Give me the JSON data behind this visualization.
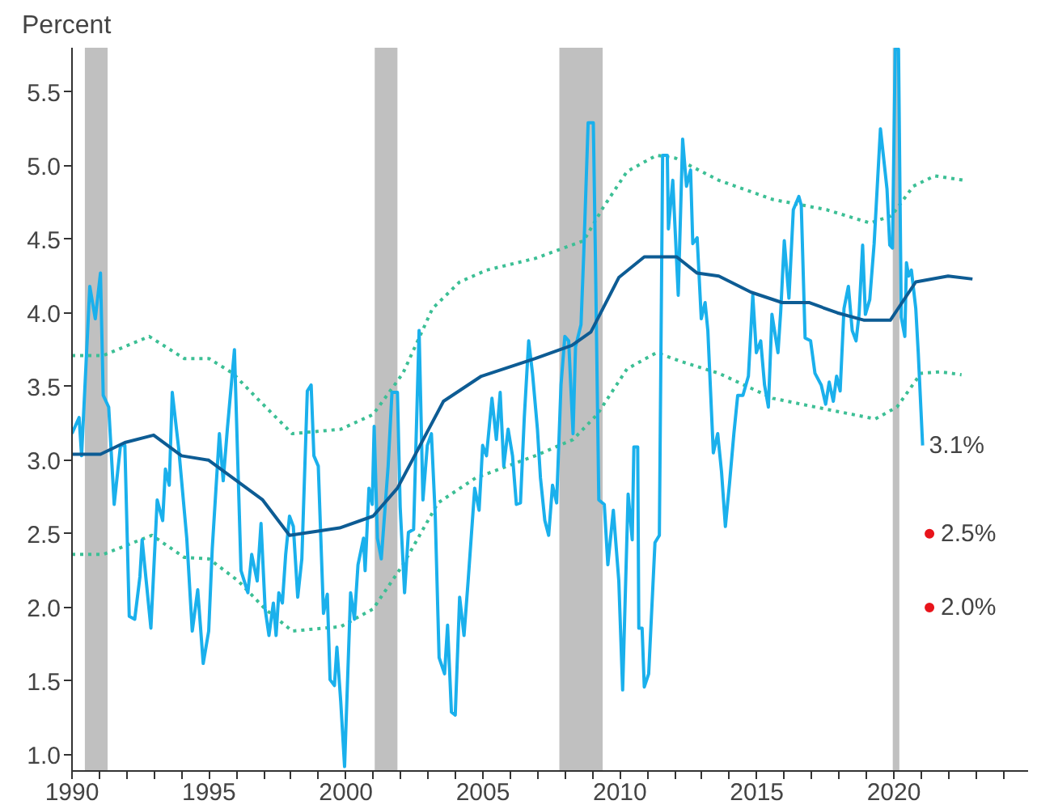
{
  "chart_data": {
    "type": "line",
    "ylabel": "Percent",
    "xlim": [
      1990,
      2024.9
    ],
    "ylim": [
      0.89,
      5.8
    ],
    "xticks": [
      1990,
      {
        "value": 1991,
        "label": null
      },
      {
        "value": 1992,
        "label": null
      },
      {
        "value": 1993,
        "label": null
      },
      {
        "value": 1994,
        "label": null
      },
      1995,
      {
        "value": 1996,
        "label": null
      },
      {
        "value": 1997,
        "label": null
      },
      {
        "value": 1998,
        "label": null
      },
      {
        "value": 1999,
        "label": null
      },
      2000,
      {
        "value": 2001,
        "label": null
      },
      {
        "value": 2002,
        "label": null
      },
      {
        "value": 2003,
        "label": null
      },
      {
        "value": 2004,
        "label": null
      },
      2005,
      {
        "value": 2006,
        "label": null
      },
      {
        "value": 2007,
        "label": null
      },
      {
        "value": 2008,
        "label": null
      },
      {
        "value": 2009,
        "label": null
      },
      2010,
      {
        "value": 2011,
        "label": null
      },
      {
        "value": 2012,
        "label": null
      },
      {
        "value": 2013,
        "label": null
      },
      {
        "value": 2014,
        "label": null
      },
      2015,
      {
        "value": 2016,
        "label": null
      },
      {
        "value": 2017,
        "label": null
      },
      {
        "value": 2018,
        "label": null
      },
      {
        "value": 2019,
        "label": null
      },
      2020,
      {
        "value": 2021,
        "label": null
      },
      {
        "value": 2022,
        "label": null
      },
      {
        "value": 2023,
        "label": null
      },
      {
        "value": 2024,
        "label": null
      }
    ],
    "yticks": [
      {
        "value": 1,
        "label": "1.0"
      },
      1.5,
      {
        "value": 2,
        "label": "2.0"
      },
      2.5,
      {
        "value": 3,
        "label": "3.0"
      },
      3.5,
      {
        "value": 4,
        "label": "4.0"
      },
      4.5,
      {
        "value": 5,
        "label": "5.0"
      },
      5.5
    ],
    "grid": false,
    "bands": [
      {
        "axis": "x",
        "from": 1990.47,
        "to": 1991.3,
        "color": "#c0c0c0"
      },
      {
        "axis": "x",
        "from": 2001.05,
        "to": 2001.88,
        "color": "#c0c0c0"
      },
      {
        "axis": "x",
        "from": 2007.79,
        "to": 2009.37,
        "color": "#c0c0c0"
      },
      {
        "axis": "x",
        "from": 2019.96,
        "to": 2020.2,
        "color": "#c0c0c0"
      }
    ],
    "annotations": [
      {
        "text": "3.1%",
        "x": 2021.05,
        "y": 3.1
      }
    ],
    "series": [
      {
        "line_style": "dotted",
        "color": "#3cbf95",
        "x": [
          1990.0,
          1991.14,
          1992.82,
          1994.1,
          1995.0,
          1995.87,
          1996.86,
          1998.04,
          1999.81,
          2000.99,
          2002.08,
          2003.16,
          2004.15,
          2005.13,
          2006.91,
          2008.68,
          2009.37,
          2010.26,
          2011.34,
          2012.03,
          2013.61,
          2015.58,
          2017.55,
          2019.13,
          2019.92,
          2020.71,
          2021.49,
          2022.57
        ],
        "values": [
          3.71,
          3.71,
          3.84,
          3.69,
          3.69,
          3.59,
          3.4,
          3.18,
          3.21,
          3.31,
          3.59,
          4.03,
          4.21,
          4.29,
          4.37,
          4.49,
          4.71,
          4.96,
          5.07,
          5.05,
          4.9,
          4.77,
          4.7,
          4.61,
          4.66,
          4.86,
          4.93,
          4.9
        ]
      },
      {
        "line_style": "dotted",
        "color": "#3cbf95",
        "x": [
          1990.0,
          1991.14,
          1992.92,
          1994.1,
          1995.0,
          1996.07,
          1997.05,
          1998.04,
          1999.81,
          2000.99,
          2002.08,
          2003.36,
          2004.74,
          2006.91,
          2008.29,
          2009.17,
          2010.26,
          2011.34,
          2012.23,
          2013.61,
          2015.58,
          2017.15,
          2019.32,
          2020.11,
          2020.99,
          2021.68,
          2022.47
        ],
        "values": [
          2.36,
          2.36,
          2.49,
          2.34,
          2.33,
          2.18,
          1.99,
          1.84,
          1.87,
          1.99,
          2.29,
          2.71,
          2.88,
          3.03,
          3.14,
          3.31,
          3.62,
          3.73,
          3.67,
          3.59,
          3.42,
          3.36,
          3.28,
          3.36,
          3.59,
          3.6,
          3.58
        ]
      },
      {
        "line_style": "solid",
        "color": "#1ab0ec",
        "x": [
          1990.0,
          1990.26,
          1990.35,
          1990.65,
          1990.85,
          1991.04,
          1991.14,
          1991.34,
          1991.54,
          1991.77,
          1991.93,
          1992.09,
          1992.29,
          1992.48,
          1992.56,
          1992.72,
          1992.88,
          1993.11,
          1993.31,
          1993.41,
          1993.55,
          1993.66,
          1993.9,
          1994.19,
          1994.39,
          1994.59,
          1994.79,
          1994.99,
          1995.12,
          1995.38,
          1995.52,
          1995.67,
          1995.93,
          1996.17,
          1996.42,
          1996.56,
          1996.76,
          1996.9,
          1997.05,
          1997.19,
          1997.35,
          1997.45,
          1997.55,
          1997.68,
          1997.8,
          1997.94,
          1998.08,
          1998.24,
          1998.39,
          1998.59,
          1998.73,
          1998.83,
          1998.99,
          1999.18,
          1999.32,
          1999.42,
          1999.58,
          1999.67,
          1999.81,
          1999.95,
          2000.17,
          2000.31,
          2000.44,
          2000.64,
          2000.7,
          2000.84,
          2000.96,
          2001.03,
          2001.15,
          2001.29,
          2001.54,
          2001.68,
          2001.88,
          2001.98,
          2002.14,
          2002.28,
          2002.47,
          2002.67,
          2002.81,
          2002.97,
          2003.12,
          2003.26,
          2003.4,
          2003.6,
          2003.71,
          2003.85,
          2003.99,
          2004.15,
          2004.31,
          2004.46,
          2004.7,
          2004.86,
          2004.99,
          2005.13,
          2005.33,
          2005.49,
          2005.63,
          2005.76,
          2005.92,
          2006.08,
          2006.22,
          2006.37,
          2006.51,
          2006.67,
          2006.81,
          2006.99,
          2007.1,
          2007.26,
          2007.4,
          2007.54,
          2007.69,
          2007.85,
          2007.99,
          2008.13,
          2008.29,
          2008.38,
          2008.58,
          2008.68,
          2008.84,
          2009.03,
          2009.11,
          2009.23,
          2009.43,
          2009.56,
          2009.76,
          2009.96,
          2010.1,
          2010.3,
          2010.45,
          2010.51,
          2010.65,
          2010.69,
          2010.81,
          2010.89,
          2011.05,
          2011.28,
          2011.44,
          2011.56,
          2011.73,
          2011.77,
          2011.93,
          2012.13,
          2012.29,
          2012.43,
          2012.58,
          2012.66,
          2012.82,
          2012.97,
          2013.11,
          2013.21,
          2013.41,
          2013.57,
          2013.71,
          2013.85,
          2014.0,
          2014.16,
          2014.3,
          2014.49,
          2014.69,
          2014.85,
          2014.98,
          2015.14,
          2015.28,
          2015.42,
          2015.55,
          2015.77,
          2015.87,
          2016.0,
          2016.17,
          2016.33,
          2016.53,
          2016.62,
          2016.76,
          2016.96,
          2017.12,
          2017.35,
          2017.51,
          2017.64,
          2017.79,
          2017.91,
          2018.04,
          2018.18,
          2018.34,
          2018.48,
          2018.62,
          2018.73,
          2018.86,
          2018.96,
          2019.12,
          2019.28,
          2019.51,
          2019.75,
          2019.85,
          2019.95,
          2020.05,
          2020.17,
          2020.27,
          2020.4,
          2020.46,
          2020.54,
          2020.64,
          2020.8,
          2020.89,
          2021.05
        ],
        "values": [
          3.18,
          3.29,
          3.03,
          4.18,
          3.96,
          4.27,
          3.44,
          3.36,
          2.7,
          3.1,
          3.1,
          1.94,
          1.92,
          2.21,
          2.46,
          2.16,
          1.86,
          2.73,
          2.59,
          2.94,
          2.83,
          3.46,
          3.07,
          2.47,
          1.84,
          2.12,
          1.62,
          1.84,
          2.4,
          3.18,
          2.86,
          3.21,
          3.75,
          2.25,
          2.1,
          2.36,
          2.18,
          2.57,
          1.99,
          1.81,
          2.03,
          1.81,
          2.1,
          2.03,
          2.36,
          2.62,
          2.55,
          2.07,
          2.33,
          3.47,
          3.51,
          3.03,
          2.96,
          1.96,
          2.09,
          1.51,
          1.47,
          1.73,
          1.36,
          0.92,
          2.1,
          1.92,
          2.29,
          2.47,
          2.25,
          2.81,
          2.7,
          3.23,
          2.47,
          2.33,
          2.96,
          3.46,
          3.46,
          2.68,
          2.1,
          2.51,
          2.53,
          3.88,
          2.73,
          3.1,
          3.18,
          2.62,
          1.66,
          1.55,
          1.88,
          1.29,
          1.27,
          2.07,
          1.81,
          2.18,
          2.81,
          2.66,
          3.1,
          3.03,
          3.42,
          3.14,
          3.46,
          2.96,
          3.21,
          3.03,
          2.7,
          2.71,
          3.29,
          3.81,
          3.59,
          3.21,
          2.88,
          2.59,
          2.49,
          2.83,
          2.71,
          3.51,
          3.84,
          3.81,
          3.18,
          3.77,
          3.92,
          4.4,
          5.29,
          5.29,
          4.33,
          2.73,
          2.7,
          2.29,
          2.66,
          2.18,
          1.44,
          2.77,
          2.46,
          3.09,
          3.09,
          1.86,
          1.86,
          1.46,
          1.55,
          2.44,
          2.49,
          5.07,
          5.07,
          4.57,
          4.9,
          4.12,
          5.18,
          4.86,
          4.97,
          4.47,
          4.51,
          3.96,
          4.07,
          3.88,
          3.05,
          3.18,
          2.92,
          2.55,
          2.84,
          3.18,
          3.44,
          3.44,
          3.57,
          4.12,
          3.73,
          3.81,
          3.51,
          3.36,
          3.99,
          3.73,
          4.01,
          4.49,
          4.1,
          4.7,
          4.79,
          4.73,
          3.83,
          3.81,
          3.59,
          3.51,
          3.38,
          3.53,
          3.4,
          3.57,
          3.47,
          4.03,
          4.18,
          3.88,
          3.81,
          3.99,
          4.46,
          3.99,
          4.09,
          4.47,
          5.25,
          4.84,
          4.46,
          4.44,
          5.79,
          5.79,
          3.97,
          3.84,
          4.34,
          4.25,
          4.29,
          4.03,
          3.73,
          3.1
        ]
      },
      {
        "line_style": "solid",
        "color": "#0d5c94",
        "x": [
          1990.0,
          1991.04,
          1991.93,
          1992.98,
          1994.0,
          1994.99,
          1996.96,
          1997.94,
          1999.77,
          2000.99,
          2001.88,
          2003.56,
          2004.94,
          2006.91,
          2008.25,
          2008.94,
          2009.96,
          2010.89,
          2012.07,
          2012.82,
          2013.61,
          2014.79,
          2015.92,
          2016.9,
          2017.94,
          2018.92,
          2019.87,
          2020.8,
          2021.98,
          2022.87
        ],
        "values": [
          3.04,
          3.04,
          3.12,
          3.17,
          3.03,
          3.0,
          2.73,
          2.49,
          2.54,
          2.62,
          2.81,
          3.4,
          3.57,
          3.69,
          3.78,
          3.87,
          4.24,
          4.38,
          4.38,
          4.27,
          4.25,
          4.14,
          4.07,
          4.07,
          4.0,
          3.95,
          3.95,
          4.21,
          4.25,
          4.23
        ]
      },
      {
        "type": "scatter",
        "marker": "circle",
        "color": "#e8141b",
        "x": [
          2021.3,
          2021.3
        ],
        "values": [
          2.5,
          2.0
        ],
        "value_labels": [
          "2.5%",
          "2.0%"
        ]
      }
    ]
  }
}
